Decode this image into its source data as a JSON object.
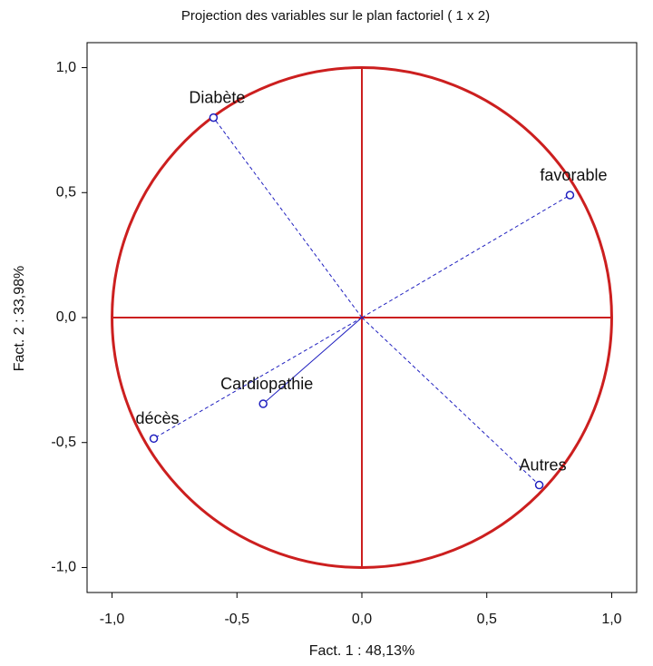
{
  "chart_data": {
    "type": "scatter",
    "title": "Projection des variables sur le plan factoriel ( 1 x 2)",
    "xlabel": "Fact. 1 : 48,13%",
    "ylabel": "Fact. 2 : 33,98%",
    "labels": [
      "Diabète",
      "favorable",
      "Cardiopathie",
      "décès",
      "Autres"
    ],
    "x": [
      -0.594,
      0.833,
      -0.395,
      -0.833,
      0.71
    ],
    "values": [
      0.8,
      0.49,
      -0.345,
      -0.484,
      -0.67
    ],
    "line_styles": [
      "dashed",
      "dashed",
      "solid",
      "dashed",
      "dashed"
    ],
    "color": "#1f1fbf",
    "circle_color": "#cc1f1f",
    "unit_circle": true,
    "xlim": [
      -1.1,
      1.1
    ],
    "ylim": [
      -1.1,
      1.1
    ],
    "xticks": [
      {
        "value": -1,
        "label": "-1,0"
      },
      {
        "value": -0.5,
        "label": "-0,5"
      },
      {
        "value": 0,
        "label": "0,0"
      },
      {
        "value": 0.5,
        "label": "0,5"
      },
      {
        "value": 1,
        "label": "1,0"
      }
    ],
    "yticks": [
      {
        "value": -1,
        "label": "-1,0"
      },
      {
        "value": -0.5,
        "label": "-0,5"
      },
      {
        "value": 0,
        "label": "0,0"
      },
      {
        "value": 0.5,
        "label": "0,5"
      },
      {
        "value": 1,
        "label": "1,0"
      }
    ]
  }
}
